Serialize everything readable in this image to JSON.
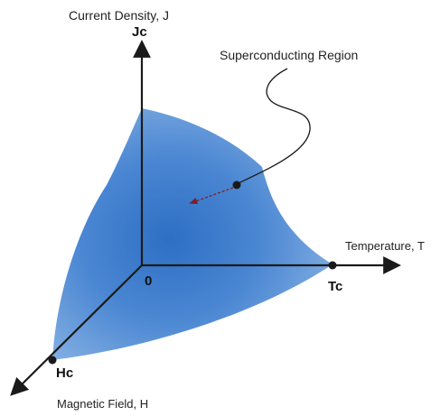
{
  "labels": {
    "y_axis_title": "Current Density, J",
    "y_axis_point": "Jc",
    "region": "Superconducting Region",
    "x_axis_title": "Temperature, T",
    "x_axis_point": "Tc",
    "z_axis_title": "Magnetic Field, H",
    "z_axis_point": "Hc",
    "origin": "0"
  },
  "colors": {
    "region_light": "#8fb8e6",
    "region_mid": "#5b95d9",
    "region_dark": "#2e6fc4",
    "axis": "#1a1a1a"
  }
}
